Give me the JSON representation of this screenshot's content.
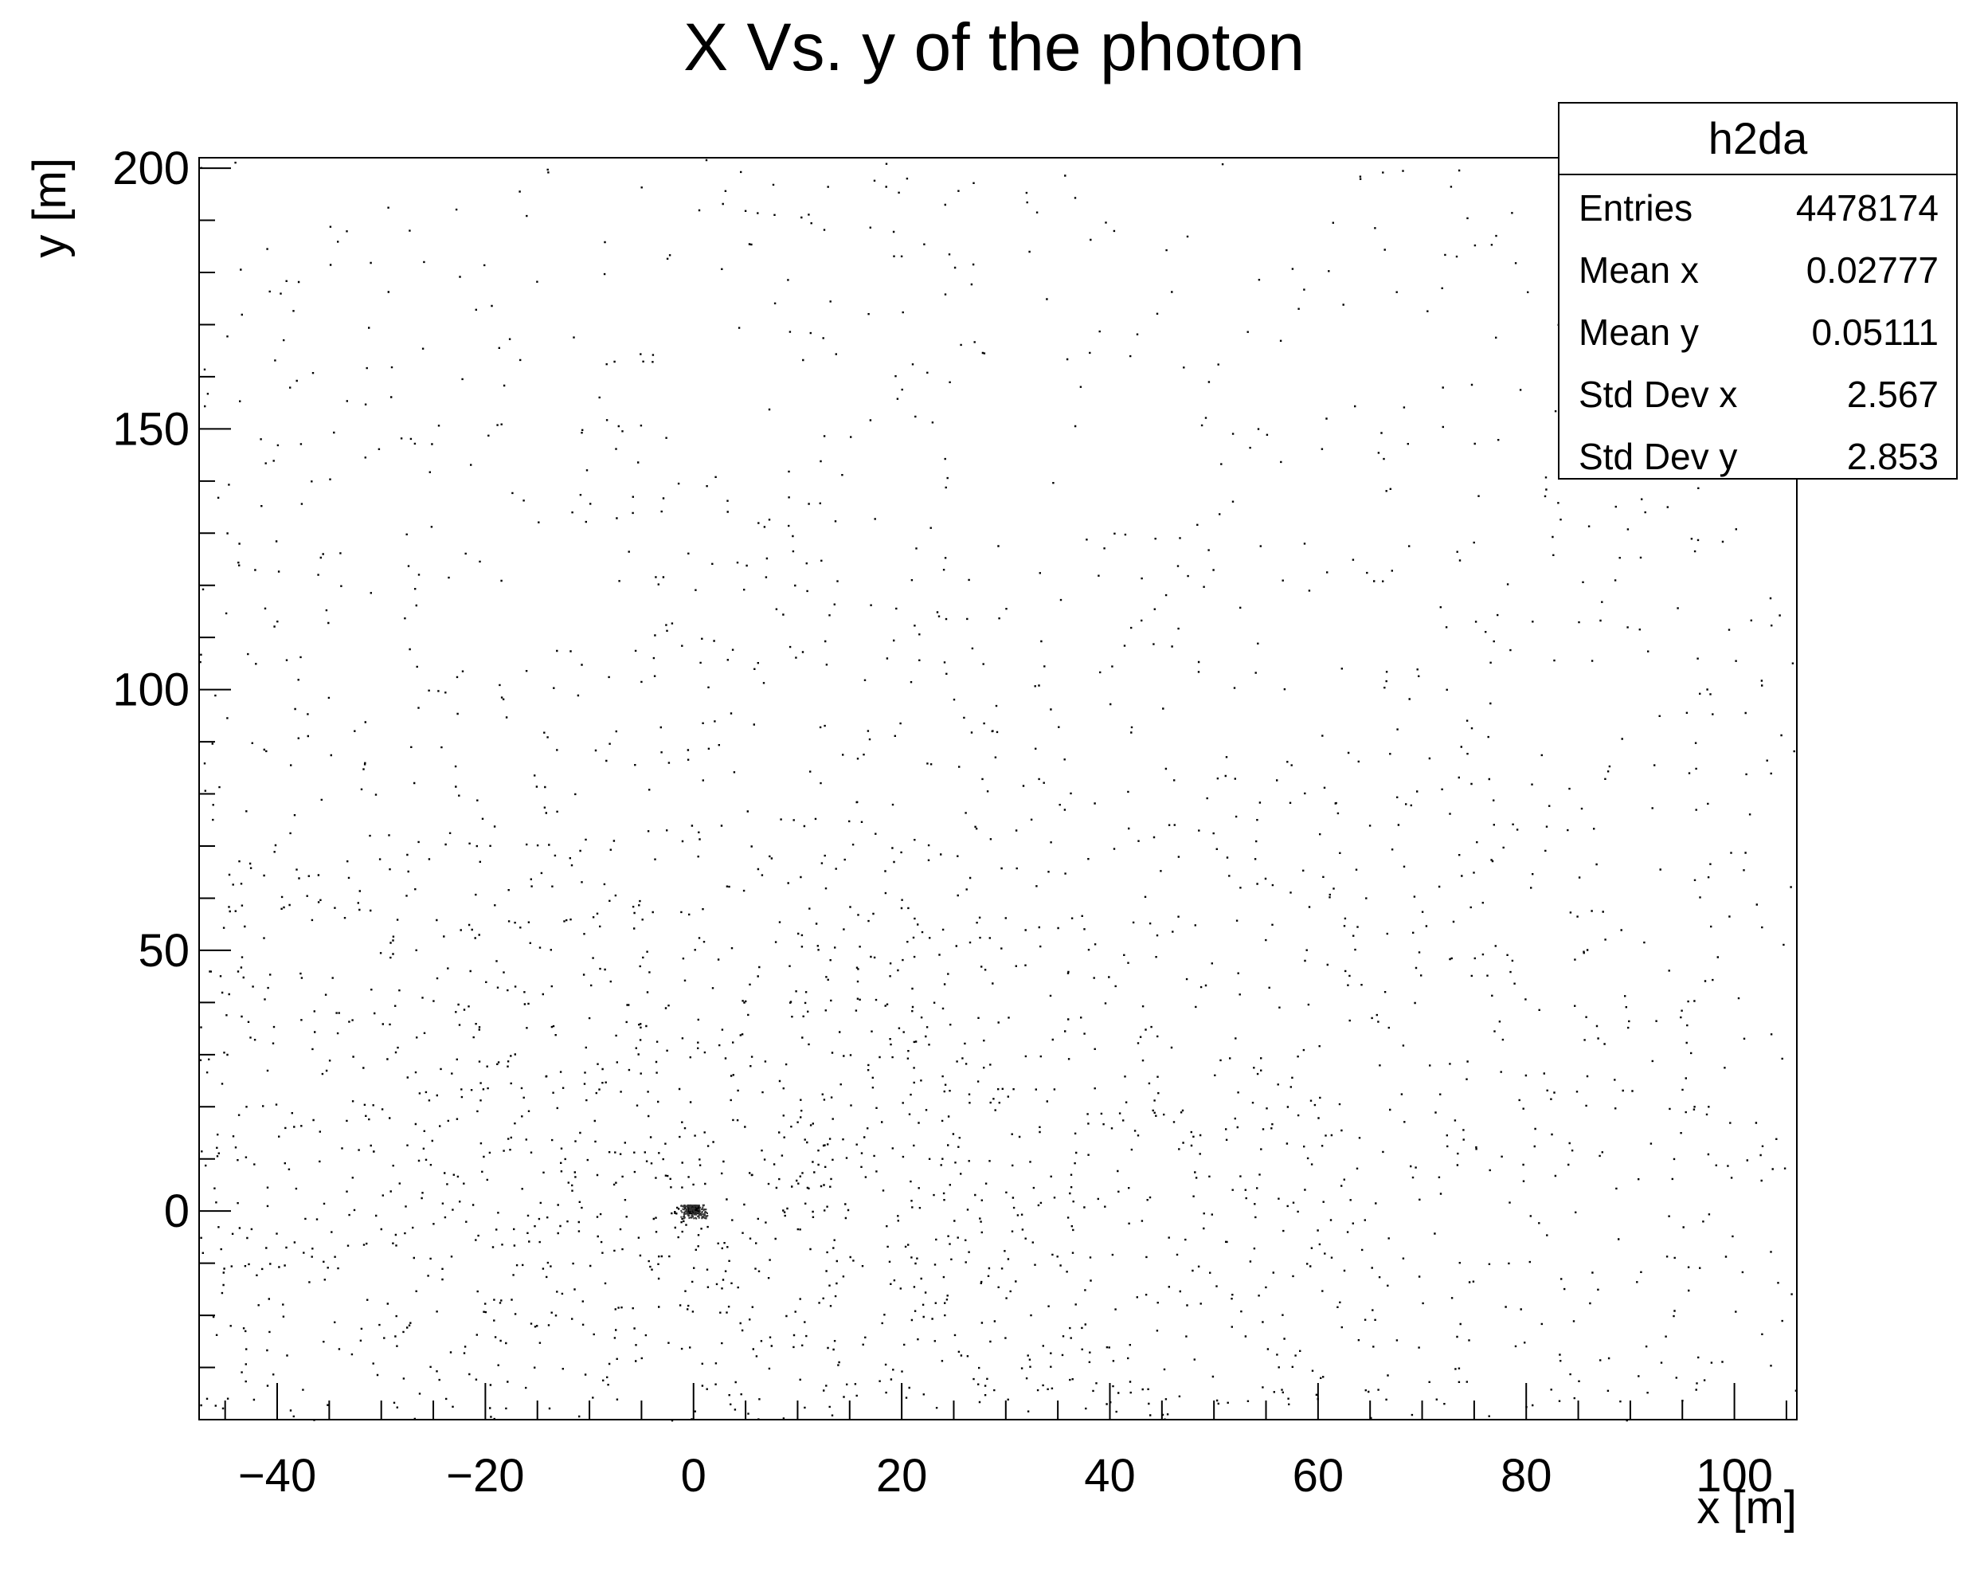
{
  "chart_data": {
    "type": "scatter",
    "title": "X  Vs. y of the photon",
    "xlabel": "x [m]",
    "ylabel": "y [m]",
    "xlim": [
      -47.5,
      106
    ],
    "ylim": [
      -40,
      202
    ],
    "xticks": [
      -40,
      -20,
      0,
      20,
      40,
      60,
      80,
      100
    ],
    "yticks": [
      0,
      50,
      100,
      150,
      200
    ],
    "xtick_labels": [
      "−40",
      "−20",
      "0",
      "20",
      "40",
      "60",
      "80",
      "100"
    ],
    "ytick_labels": [
      "0",
      "50",
      "100",
      "150",
      "200"
    ],
    "cluster_center": [
      0,
      0
    ],
    "colors": {
      "points": "#000000",
      "frame": "#000000"
    },
    "grid": false,
    "legend": "none"
  },
  "stats": {
    "title": "h2da",
    "rows": [
      {
        "label": "Entries",
        "value": "4478174"
      },
      {
        "label": "Mean x",
        "value": "0.02777"
      },
      {
        "label": "Mean y",
        "value": "0.05111"
      },
      {
        "label": "Std Dev x",
        "value": "2.567"
      },
      {
        "label": "Std Dev y",
        "value": "2.853"
      }
    ]
  }
}
